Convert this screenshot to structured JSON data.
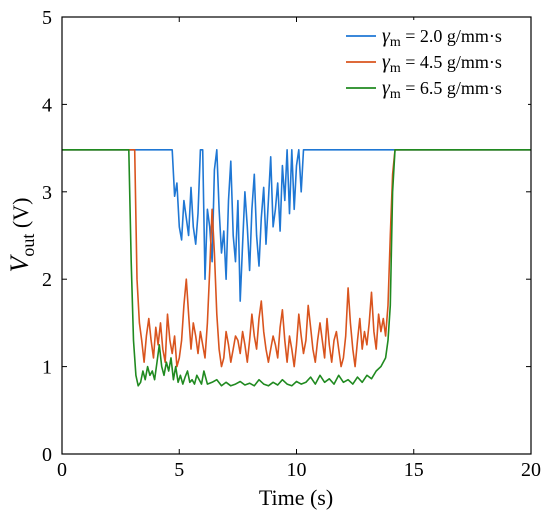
{
  "chart_data": {
    "type": "line",
    "title": "",
    "xlabel": "Time (s)",
    "ylabel_symbol": "V",
    "ylabel_subscript": "out",
    "ylabel_unit": " (V)",
    "xlim": [
      0,
      20
    ],
    "ylim": [
      0,
      5
    ],
    "xticks": [
      0,
      5,
      10,
      15,
      20
    ],
    "yticks": [
      0,
      1,
      2,
      3,
      4,
      5
    ],
    "grid": false,
    "legend_position": "top-right",
    "series": [
      {
        "symbol": "γ",
        "subscript": "m",
        "label_rest": " = 2.0 g/mm·s",
        "color": "#1f77d4",
        "x": [
          0,
          4.7,
          4.8,
          4.9,
          5.0,
          5.1,
          5.2,
          5.3,
          5.4,
          5.5,
          5.6,
          5.7,
          5.8,
          5.9,
          6.0,
          6.1,
          6.2,
          6.3,
          6.4,
          6.5,
          6.6,
          6.7,
          6.8,
          6.9,
          7.0,
          7.1,
          7.2,
          7.3,
          7.4,
          7.5,
          7.6,
          7.7,
          7.8,
          7.9,
          8.0,
          8.1,
          8.2,
          8.3,
          8.4,
          8.5,
          8.6,
          8.7,
          8.8,
          8.9,
          9.0,
          9.1,
          9.2,
          9.3,
          9.4,
          9.5,
          9.6,
          9.7,
          9.8,
          9.9,
          10.0,
          10.1,
          10.2,
          10.3,
          10.4,
          10.5,
          10.6,
          10.7,
          10.8,
          10.9,
          11.0,
          11.1,
          11.2,
          11.3,
          11.4,
          11.5,
          11.6,
          11.7,
          11.8,
          11.9,
          12.0,
          12.2,
          20
        ],
        "y": [
          3.48,
          3.48,
          2.95,
          3.1,
          2.6,
          2.45,
          2.9,
          2.7,
          2.5,
          3.05,
          2.6,
          2.4,
          2.75,
          3.48,
          3.48,
          2.0,
          2.8,
          2.6,
          2.2,
          3.25,
          3.48,
          2.8,
          2.3,
          2.55,
          2.0,
          2.9,
          3.35,
          2.5,
          2.2,
          2.9,
          1.75,
          2.4,
          3.0,
          2.6,
          2.1,
          2.8,
          3.2,
          2.5,
          2.15,
          2.7,
          3.05,
          2.4,
          2.9,
          3.4,
          2.6,
          2.8,
          3.1,
          2.55,
          3.3,
          2.9,
          3.48,
          2.75,
          3.48,
          2.8,
          3.3,
          3.48,
          3.0,
          3.48,
          3.48,
          3.48,
          3.48,
          3.48,
          3.48,
          3.48,
          3.48,
          3.48,
          3.48,
          3.48,
          3.48,
          3.48,
          3.48,
          3.48,
          3.48,
          3.48,
          3.48,
          3.48,
          3.48
        ]
      },
      {
        "symbol": "γ",
        "subscript": "m",
        "label_rest": " = 4.5 g/mm·s",
        "color": "#d9541e",
        "x": [
          0,
          3.1,
          3.2,
          3.3,
          3.4,
          3.5,
          3.6,
          3.7,
          3.8,
          3.9,
          4.0,
          4.1,
          4.2,
          4.3,
          4.4,
          4.5,
          4.6,
          4.7,
          4.8,
          4.9,
          5.0,
          5.1,
          5.2,
          5.3,
          5.4,
          5.5,
          5.6,
          5.7,
          5.8,
          5.9,
          6.0,
          6.1,
          6.2,
          6.3,
          6.4,
          6.5,
          6.6,
          6.7,
          6.8,
          6.9,
          7.0,
          7.1,
          7.2,
          7.3,
          7.4,
          7.5,
          7.6,
          7.7,
          7.8,
          7.9,
          8.0,
          8.1,
          8.2,
          8.3,
          8.4,
          8.5,
          8.6,
          8.7,
          8.8,
          8.9,
          9.0,
          9.1,
          9.2,
          9.3,
          9.4,
          9.5,
          9.6,
          9.7,
          9.8,
          9.9,
          10.0,
          10.1,
          10.2,
          10.3,
          10.4,
          10.5,
          10.6,
          10.7,
          10.8,
          10.9,
          11.0,
          11.1,
          11.2,
          11.3,
          11.4,
          11.5,
          11.6,
          11.7,
          11.8,
          11.9,
          12.0,
          12.1,
          12.2,
          12.3,
          12.4,
          12.5,
          12.6,
          12.7,
          12.8,
          12.9,
          13.0,
          13.1,
          13.2,
          13.3,
          13.4,
          13.5,
          13.6,
          13.7,
          13.8,
          13.9,
          14.0,
          14.1,
          14.2,
          20
        ],
        "y": [
          3.48,
          3.48,
          2.0,
          1.5,
          1.3,
          1.05,
          1.35,
          1.55,
          1.3,
          1.1,
          1.45,
          1.25,
          1.5,
          1.2,
          1.05,
          1.6,
          1.3,
          1.15,
          1.35,
          1.0,
          1.1,
          1.3,
          1.7,
          2.0,
          1.6,
          1.2,
          1.5,
          1.35,
          1.15,
          1.4,
          1.25,
          1.1,
          1.5,
          2.1,
          2.8,
          2.3,
          1.6,
          1.2,
          1.0,
          1.1,
          1.4,
          1.25,
          1.05,
          1.2,
          1.35,
          1.3,
          1.15,
          1.4,
          1.25,
          1.05,
          1.3,
          1.6,
          1.35,
          1.2,
          1.55,
          1.75,
          1.4,
          1.2,
          1.05,
          1.2,
          1.35,
          1.25,
          1.1,
          1.45,
          1.65,
          1.3,
          1.05,
          1.35,
          1.2,
          1.0,
          1.25,
          1.6,
          1.35,
          1.15,
          1.3,
          1.7,
          1.45,
          1.2,
          1.05,
          1.3,
          1.5,
          1.3,
          1.1,
          1.55,
          1.25,
          1.05,
          1.3,
          1.4,
          1.2,
          1.0,
          1.1,
          1.35,
          1.9,
          1.5,
          1.2,
          1.0,
          1.3,
          1.55,
          1.2,
          1.4,
          1.25,
          1.5,
          1.85,
          1.4,
          1.2,
          1.6,
          1.4,
          1.55,
          1.35,
          1.7,
          2.5,
          3.2,
          3.48,
          3.48
        ]
      },
      {
        "symbol": "γ",
        "subscript": "m",
        "label_rest": " = 6.5 g/mm·s",
        "color": "#208a20",
        "x": [
          0,
          2.85,
          2.95,
          3.05,
          3.15,
          3.25,
          3.35,
          3.45,
          3.55,
          3.65,
          3.75,
          3.85,
          3.95,
          4.05,
          4.15,
          4.25,
          4.35,
          4.45,
          4.55,
          4.65,
          4.75,
          4.85,
          4.95,
          5.05,
          5.15,
          5.25,
          5.35,
          5.45,
          5.55,
          5.65,
          5.75,
          5.85,
          5.95,
          6.05,
          6.2,
          6.4,
          6.6,
          6.8,
          7.0,
          7.2,
          7.4,
          7.6,
          7.8,
          8.0,
          8.2,
          8.4,
          8.6,
          8.8,
          9.0,
          9.2,
          9.4,
          9.6,
          9.8,
          10.0,
          10.2,
          10.4,
          10.6,
          10.8,
          11.0,
          11.2,
          11.4,
          11.6,
          11.8,
          12.0,
          12.2,
          12.4,
          12.6,
          12.8,
          13.0,
          13.2,
          13.4,
          13.6,
          13.8,
          13.9,
          14.0,
          14.1,
          14.2,
          20
        ],
        "y": [
          3.48,
          3.48,
          2.2,
          1.3,
          0.9,
          0.78,
          0.82,
          0.95,
          0.85,
          1.0,
          0.9,
          0.95,
          0.85,
          1.05,
          1.25,
          1.0,
          0.9,
          1.05,
          0.95,
          1.1,
          0.85,
          1.0,
          0.82,
          0.9,
          0.8,
          0.88,
          0.95,
          0.82,
          0.85,
          0.8,
          0.9,
          0.85,
          0.8,
          0.95,
          0.8,
          0.82,
          0.85,
          0.78,
          0.82,
          0.78,
          0.8,
          0.83,
          0.79,
          0.81,
          0.78,
          0.85,
          0.8,
          0.78,
          0.82,
          0.79,
          0.85,
          0.8,
          0.78,
          0.83,
          0.8,
          0.82,
          0.88,
          0.8,
          0.9,
          0.82,
          0.86,
          0.8,
          0.9,
          0.82,
          0.85,
          0.8,
          0.88,
          0.82,
          0.9,
          0.86,
          0.95,
          1.0,
          1.1,
          1.3,
          1.7,
          3.0,
          3.48,
          3.48
        ]
      }
    ]
  }
}
